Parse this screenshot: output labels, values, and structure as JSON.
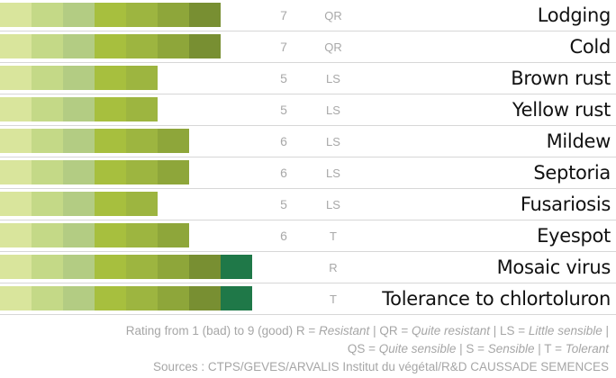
{
  "chart_data": {
    "type": "bar",
    "categories": [
      "Lodging",
      "Cold",
      "Brown rust",
      "Yellow rust",
      "Mildew",
      "Septoria",
      "Fusariosis",
      "Eyespot",
      "Mosaic virus",
      "Tolerance to chlortoluron"
    ],
    "values": [
      7,
      7,
      5,
      5,
      6,
      6,
      5,
      6,
      8,
      8
    ],
    "score_labels": [
      "7",
      "7",
      "5",
      "5",
      "6",
      "6",
      "5",
      "6",
      "",
      ""
    ],
    "ratings": [
      "QR",
      "QR",
      "LS",
      "LS",
      "LS",
      "LS",
      "LS",
      "T",
      "R",
      "T"
    ],
    "xlim": [
      0,
      9
    ],
    "segment_colors": [
      "#d9e59c",
      "#c4d987",
      "#b3cc83",
      "#a7bf3e",
      "#9db540",
      "#8ea63a",
      "#788f32",
      "#1f7848",
      "#1f7848"
    ]
  },
  "footer": {
    "line1_text": "Rating from 1 (bad) to 9 (good) R = ",
    "resistant": "Resistant",
    "sep1": " | QR = ",
    "quite_resistant": "Quite resistant",
    "sep2": " | LS = ",
    "little_sensible": "Little sensible",
    "sep3": " |",
    "line2_text": "QS = ",
    "quite_sensible": "Quite sensible",
    "sep4": " | S = ",
    "sensible": "Sensible",
    "sep5": " | T = ",
    "tolerant": "Tolerant",
    "sources": "Sources : CTPS/GEVES/ARVALIS Institut du végétal/R&D CAUSSADE SEMENCES"
  }
}
